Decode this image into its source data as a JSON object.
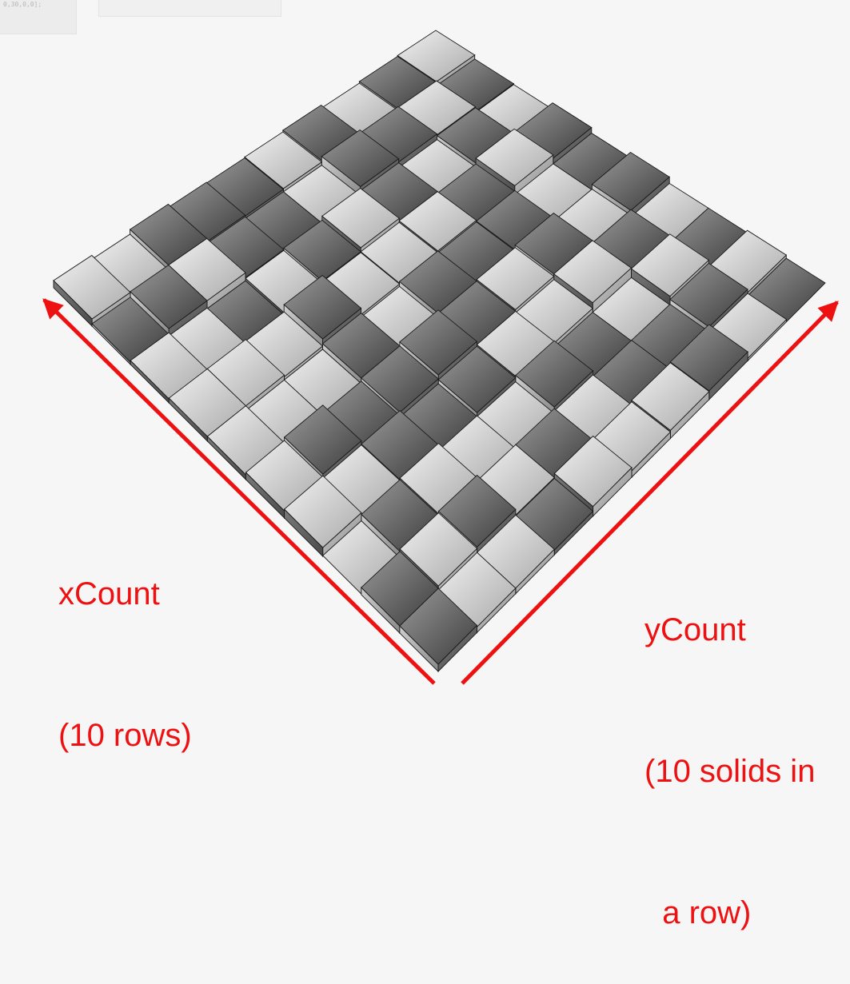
{
  "toolbar": {
    "code_snippet": "0,30,0,0];"
  },
  "diagram": {
    "x_label_line1": "xCount",
    "x_label_line2": "(10 rows)",
    "y_label_line1": "yCount",
    "y_label_line2": "(10 solids in",
    "y_label_line3": "  a row)",
    "x_count": 10,
    "y_count": 10,
    "arrow_color": "#ee1111",
    "text_color": "#ee1111",
    "light_tile": "#dcdcdc",
    "dark_tile": "#6e6e6e",
    "background": "#f6f6f6"
  }
}
